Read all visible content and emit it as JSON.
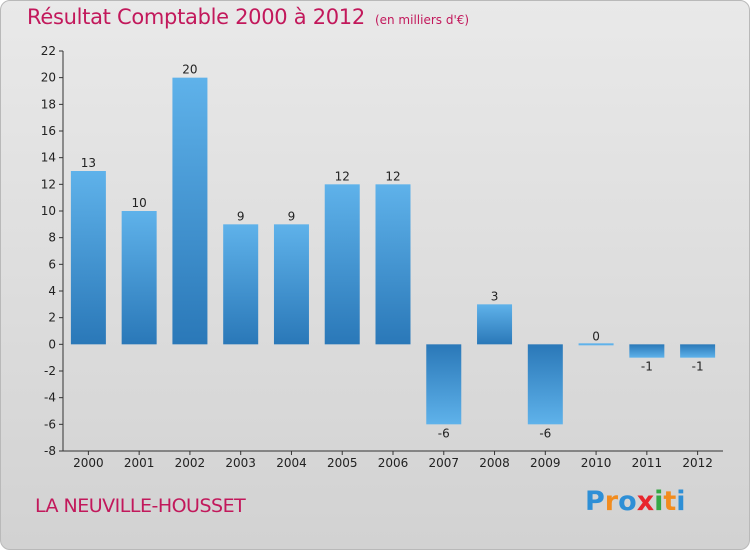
{
  "chart_data": {
    "type": "bar",
    "title": "Résultat Comptable 2000 à 2012",
    "subtitle": "(en milliers d'€)",
    "categories": [
      "2000",
      "2001",
      "2002",
      "2003",
      "2004",
      "2005",
      "2006",
      "2007",
      "2008",
      "2009",
      "2010",
      "2011",
      "2012"
    ],
    "values": [
      13,
      10,
      20,
      9,
      9,
      12,
      12,
      -6,
      3,
      -6,
      0,
      -1,
      -1
    ],
    "data_labels": [
      "13",
      "10",
      "20",
      "9",
      "9",
      "12",
      "12",
      "-6",
      "3",
      "-6",
      "0",
      "-1",
      "-1"
    ],
    "ylim": [
      -8,
      22
    ],
    "y_ticks": [
      -8,
      -6,
      -4,
      -2,
      0,
      2,
      4,
      6,
      8,
      10,
      12,
      14,
      16,
      18,
      20,
      22
    ],
    "xlabel": "",
    "ylabel": "",
    "grid": false,
    "bar_color": "#3d97d8"
  },
  "footer": {
    "commune": "LA NEUVILLE-HOUSSET",
    "logo_letters": [
      {
        "char": "P",
        "color": "#2e8fd6"
      },
      {
        "char": "r",
        "color": "#f28c1e"
      },
      {
        "char": "o",
        "color": "#2e8fd6"
      },
      {
        "char": "x",
        "color": "#e8262d"
      },
      {
        "char": "i",
        "color": "#35a845"
      },
      {
        "char": "t",
        "color": "#f28c1e"
      },
      {
        "char": "i",
        "color": "#2e8fd6"
      }
    ]
  }
}
